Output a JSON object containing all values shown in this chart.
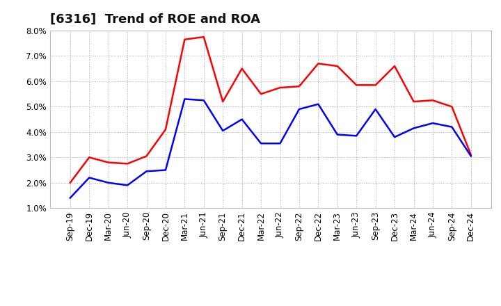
{
  "title": "[6316]  Trend of ROE and ROA",
  "labels": [
    "Sep-19",
    "Dec-19",
    "Mar-20",
    "Jun-20",
    "Sep-20",
    "Dec-20",
    "Mar-21",
    "Jun-21",
    "Sep-21",
    "Dec-21",
    "Mar-22",
    "Jun-22",
    "Sep-22",
    "Dec-22",
    "Mar-23",
    "Jun-23",
    "Sep-23",
    "Dec-23",
    "Mar-24",
    "Jun-24",
    "Sep-24",
    "Dec-24"
  ],
  "ROE": [
    2.0,
    3.0,
    2.8,
    2.75,
    3.05,
    4.1,
    7.65,
    7.75,
    5.2,
    6.5,
    5.5,
    5.75,
    5.8,
    6.7,
    6.6,
    5.85,
    5.85,
    6.6,
    5.2,
    5.25,
    5.0,
    3.1
  ],
  "ROA": [
    1.4,
    2.2,
    2.0,
    1.9,
    2.45,
    2.5,
    5.3,
    5.25,
    4.05,
    4.5,
    3.55,
    3.55,
    4.9,
    5.1,
    3.9,
    3.85,
    4.9,
    3.8,
    4.15,
    4.35,
    4.2,
    3.05
  ],
  "roe_color": "#ff0000",
  "roa_color": "#0000ff",
  "background_color": "#ffffff",
  "plot_bg_color": "#ffffff",
  "grid_color": "#aaaaaa",
  "ylim": [
    1.0,
    8.0
  ],
  "yticks": [
    1.0,
    2.0,
    3.0,
    4.0,
    5.0,
    6.0,
    7.0,
    8.0
  ],
  "title_fontsize": 13,
  "axis_fontsize": 8.5,
  "legend_fontsize": 10,
  "line_width": 1.8
}
